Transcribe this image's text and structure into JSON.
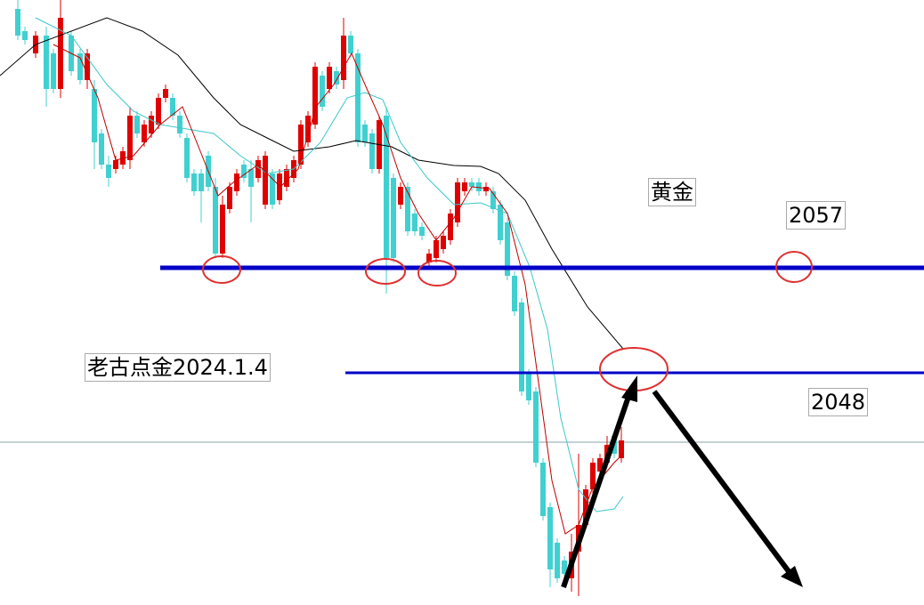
{
  "annotations": {
    "symbol": "黄金",
    "upper_level": "2057",
    "author_date": "老古点金2024.1.4",
    "lower_level": "2048"
  }
}
